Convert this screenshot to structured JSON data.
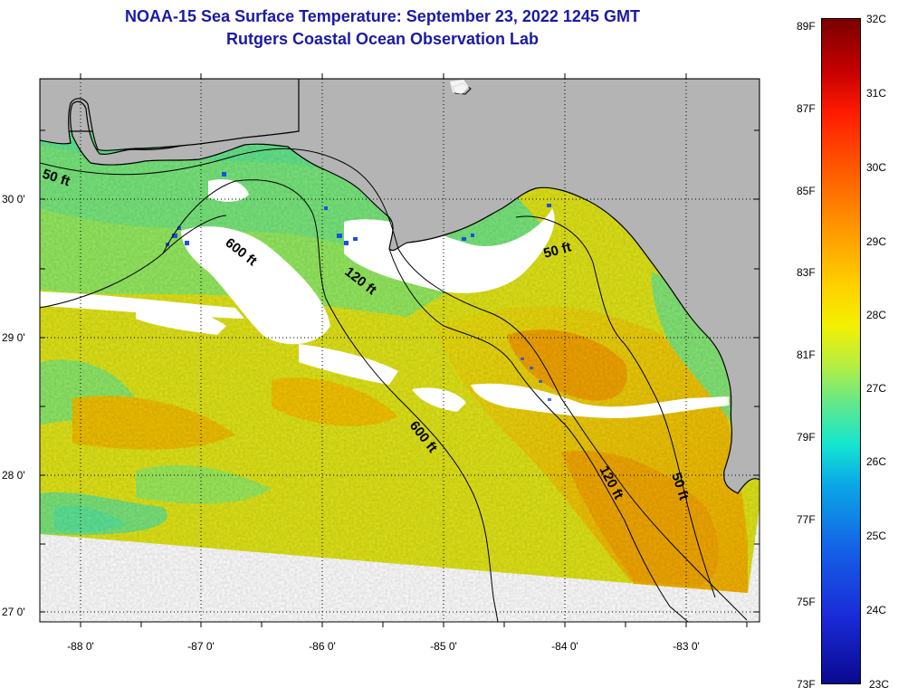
{
  "header": {
    "title": "NOAA-15 Sea Surface Temperature:  September 23, 2022 1245 GMT",
    "subtitle": "Rutgers Coastal Ocean Observation Lab"
  },
  "map": {
    "land_color": "#b4b4b4",
    "cloud_color": "#ffffff",
    "lat_labels": [
      "30 0'",
      "29 0'",
      "28 0'",
      "27 0'"
    ],
    "lon_labels": [
      "-88 0'",
      "-87 0'",
      "-86 0'",
      "-85 0'",
      "-84 0'",
      "-83 0'"
    ],
    "isobath_labels": {
      "nw_50": "50 ft",
      "w_600": "600 ft",
      "mid_120": "120 ft",
      "e_50": "50 ft",
      "s_600": "600 ft",
      "se_120": "120 ft",
      "se_50": "50 ft"
    }
  },
  "colorbar": {
    "fahrenheit": [
      "89F",
      "87F",
      "85F",
      "83F",
      "81F",
      "79F",
      "77F",
      "75F",
      "73F"
    ],
    "celsius": [
      "32C",
      "31C",
      "30C",
      "29C",
      "28C",
      "27C",
      "26C",
      "25C",
      "24C",
      "23C"
    ]
  }
}
